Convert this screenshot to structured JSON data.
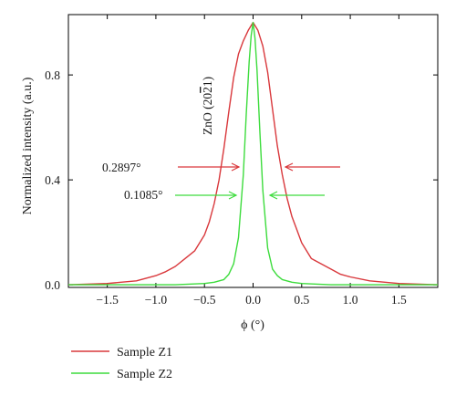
{
  "chart_data": {
    "type": "line",
    "xlabel": "ϕ (°)",
    "ylabel": "Normalized intensity (a.u.)",
    "xlim": [
      -1.9,
      1.9
    ],
    "ylim": [
      -0.01,
      1.03
    ],
    "xticks": [
      "−1.5",
      "−1.0",
      "−0.5",
      "0.0",
      "0.5",
      "1.0",
      "1.5"
    ],
    "xtick_values": [
      -1.5,
      -1.0,
      -0.5,
      0.0,
      0.5,
      1.0,
      1.5
    ],
    "yticks": [
      "0.0",
      "0.4",
      "0.8"
    ],
    "ytick_values": [
      0.0,
      0.4,
      0.8
    ],
    "grid": false,
    "legend_position": "bottom-left",
    "series": [
      {
        "name": "Sample Z1",
        "color": "#d9383c",
        "x": [
          -1.9,
          -1.5,
          -1.2,
          -1.0,
          -0.9,
          -0.8,
          -0.7,
          -0.6,
          -0.5,
          -0.45,
          -0.4,
          -0.35,
          -0.3,
          -0.25,
          -0.2,
          -0.15,
          -0.1,
          -0.05,
          0.0,
          0.05,
          0.1,
          0.15,
          0.2,
          0.25,
          0.3,
          0.35,
          0.4,
          0.45,
          0.5,
          0.6,
          0.7,
          0.8,
          0.9,
          1.0,
          1.2,
          1.5,
          1.9
        ],
        "y": [
          0.0,
          0.005,
          0.015,
          0.035,
          0.05,
          0.07,
          0.1,
          0.13,
          0.19,
          0.24,
          0.31,
          0.4,
          0.52,
          0.66,
          0.79,
          0.88,
          0.93,
          0.97,
          1.0,
          0.97,
          0.91,
          0.81,
          0.67,
          0.53,
          0.42,
          0.33,
          0.26,
          0.21,
          0.16,
          0.1,
          0.08,
          0.06,
          0.04,
          0.03,
          0.015,
          0.005,
          0.0
        ]
      },
      {
        "name": "Sample Z2",
        "color": "#3ddc3d",
        "x": [
          -1.9,
          -0.8,
          -0.5,
          -0.4,
          -0.3,
          -0.25,
          -0.2,
          -0.15,
          -0.1,
          -0.07,
          -0.04,
          -0.02,
          0.0,
          0.02,
          0.04,
          0.07,
          0.1,
          0.15,
          0.2,
          0.25,
          0.3,
          0.4,
          0.5,
          0.8,
          1.9
        ],
        "y": [
          0.0,
          0.0,
          0.005,
          0.01,
          0.02,
          0.04,
          0.08,
          0.18,
          0.42,
          0.65,
          0.85,
          0.95,
          1.0,
          0.94,
          0.82,
          0.58,
          0.36,
          0.14,
          0.06,
          0.035,
          0.02,
          0.01,
          0.005,
          0.0,
          0.0
        ]
      }
    ],
    "annotations": {
      "peak_label": "ZnO (20",
      "peak_label_bar": "2",
      "peak_label_tail": "1)",
      "z1_fwhm": "0.2897°",
      "z2_fwhm": "0.1085°"
    }
  }
}
